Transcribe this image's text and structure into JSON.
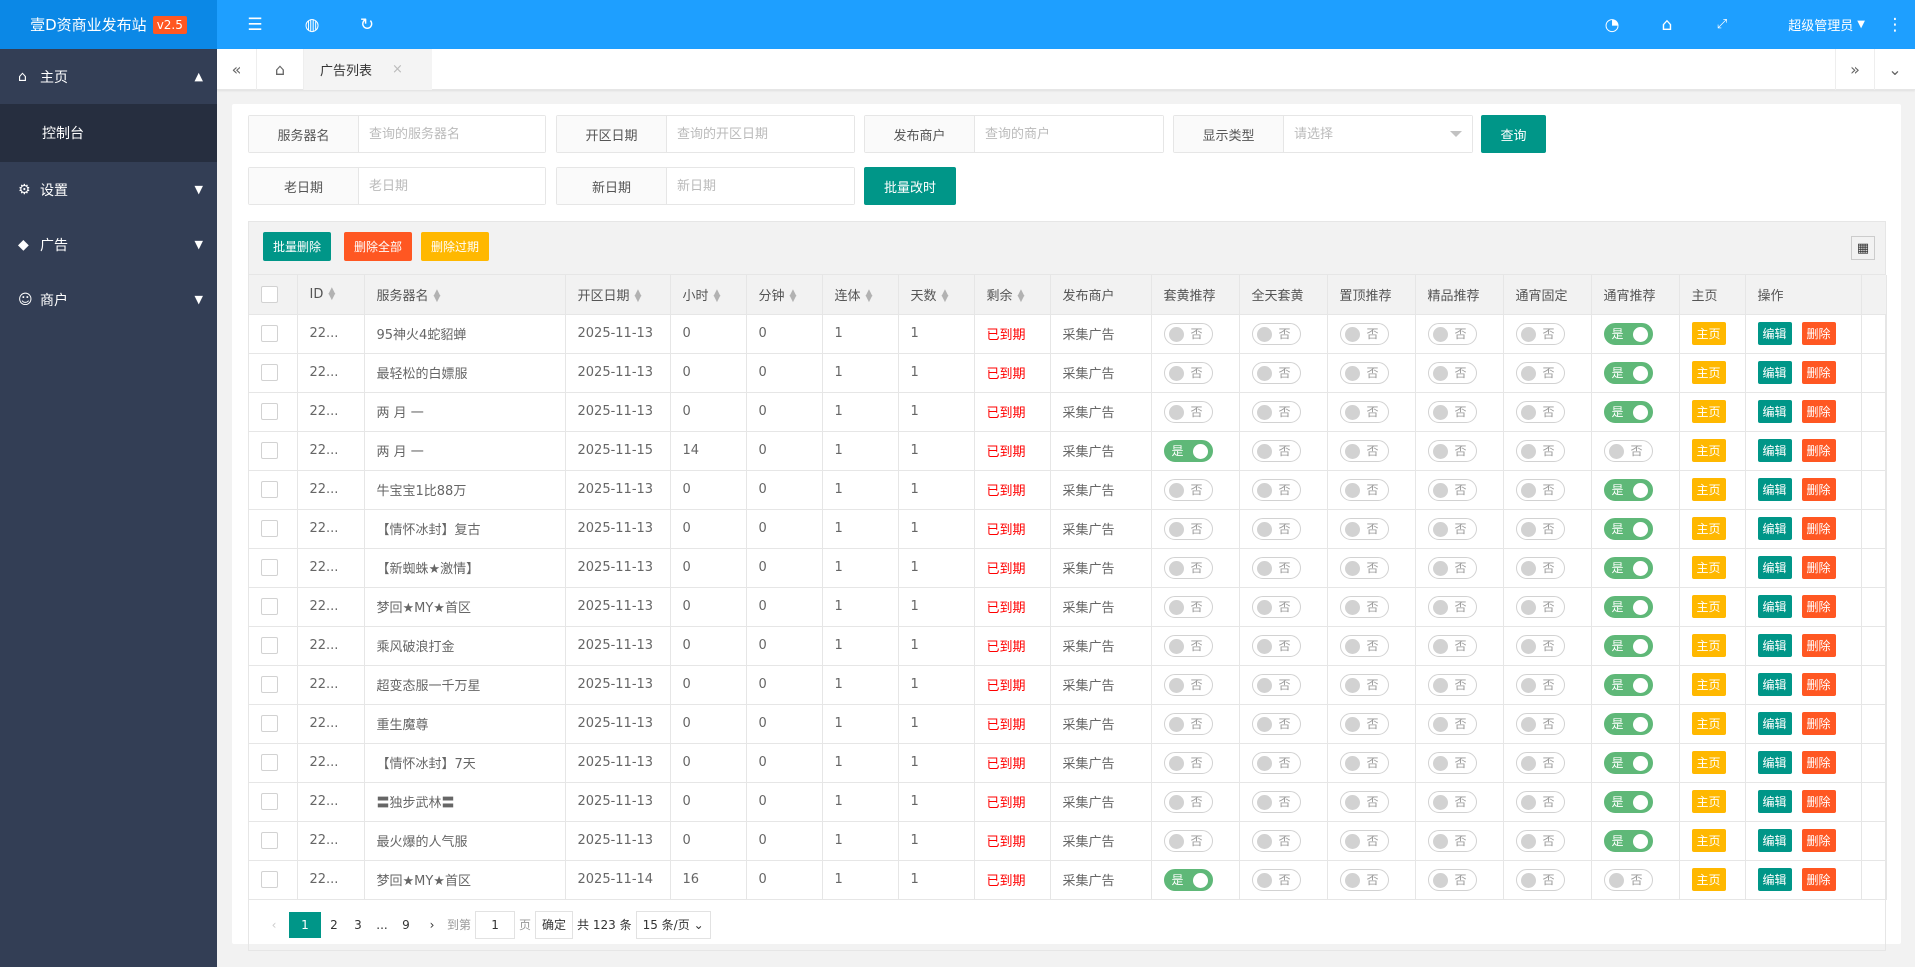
{
  "header": {
    "logo": "壹D资商业发布站",
    "version": "v2.5",
    "admin": "超级管理员",
    "colors": {
      "primary": "#1e9fff",
      "logo_bg": "#0b88e6",
      "version_badge": "#ff5722"
    }
  },
  "sidebar": {
    "items": [
      {
        "label": "主页",
        "icon": "home-icon",
        "expanded": true,
        "children": [
          "控制台"
        ]
      },
      {
        "label": "设置",
        "icon": "gear-icon"
      },
      {
        "label": "广告",
        "icon": "diamond-icon"
      },
      {
        "label": "商户",
        "icon": "user-icon"
      }
    ]
  },
  "tabs": {
    "active": "广告列表"
  },
  "search": {
    "fields": [
      {
        "label": "服务器名",
        "placeholder": "查询的服务器名"
      },
      {
        "label": "开区日期",
        "placeholder": "查询的开区日期"
      },
      {
        "label": "发布商户",
        "placeholder": "查询的商户"
      },
      {
        "label": "显示类型",
        "placeholder": "请选择"
      },
      {
        "label": "老日期",
        "placeholder": "老日期"
      },
      {
        "label": "新日期",
        "placeholder": "新日期"
      }
    ],
    "query_label": "查询",
    "batch_time_label": "批量改时"
  },
  "toolbar": {
    "batch_delete": "批量删除",
    "delete_all": "删除全部",
    "delete_expired": "删除过期"
  },
  "table": {
    "columns": [
      "ID",
      "服务器名",
      "开区日期",
      "小时",
      "分钟",
      "连体",
      "天数",
      "剩余",
      "发布商户",
      "套黄推荐",
      "全天套黄",
      "置顶推荐",
      "精品推荐",
      "通宵固定",
      "通宵推荐",
      "主页",
      "操作"
    ],
    "switch_on": "是",
    "switch_off": "否",
    "home_label": "主页",
    "edit_label": "编辑",
    "delete_label": "删除",
    "rows": [
      {
        "id": "22...",
        "name": "95神火4蛇貂蝉",
        "date": "2025-11-13",
        "hour": "0",
        "minute": "0",
        "lianti": "1",
        "days": "1",
        "remain": "已到期",
        "merchant": "采集广告",
        "switches": [
          false,
          false,
          false,
          false,
          false,
          true
        ]
      },
      {
        "id": "22...",
        "name": "最轻松的白嫖服",
        "date": "2025-11-13",
        "hour": "0",
        "minute": "0",
        "lianti": "1",
        "days": "1",
        "remain": "已到期",
        "merchant": "采集广告",
        "switches": [
          false,
          false,
          false,
          false,
          false,
          true
        ]
      },
      {
        "id": "22...",
        "name": "两 月 一",
        "date": "2025-11-13",
        "hour": "0",
        "minute": "0",
        "lianti": "1",
        "days": "1",
        "remain": "已到期",
        "merchant": "采集广告",
        "switches": [
          false,
          false,
          false,
          false,
          false,
          true
        ]
      },
      {
        "id": "22...",
        "name": "两 月 一",
        "date": "2025-11-15",
        "hour": "14",
        "minute": "0",
        "lianti": "1",
        "days": "1",
        "remain": "已到期",
        "merchant": "采集广告",
        "switches": [
          true,
          false,
          false,
          false,
          false,
          false
        ]
      },
      {
        "id": "22...",
        "name": "牛宝宝1比88万",
        "date": "2025-11-13",
        "hour": "0",
        "minute": "0",
        "lianti": "1",
        "days": "1",
        "remain": "已到期",
        "merchant": "采集广告",
        "switches": [
          false,
          false,
          false,
          false,
          false,
          true
        ]
      },
      {
        "id": "22...",
        "name": "【情怀冰封】复古",
        "date": "2025-11-13",
        "hour": "0",
        "minute": "0",
        "lianti": "1",
        "days": "1",
        "remain": "已到期",
        "merchant": "采集广告",
        "switches": [
          false,
          false,
          false,
          false,
          false,
          true
        ]
      },
      {
        "id": "22...",
        "name": "【新蜘蛛★激情】",
        "date": "2025-11-13",
        "hour": "0",
        "minute": "0",
        "lianti": "1",
        "days": "1",
        "remain": "已到期",
        "merchant": "采集广告",
        "switches": [
          false,
          false,
          false,
          false,
          false,
          true
        ]
      },
      {
        "id": "22...",
        "name": "梦回★MY★首区",
        "date": "2025-11-13",
        "hour": "0",
        "minute": "0",
        "lianti": "1",
        "days": "1",
        "remain": "已到期",
        "merchant": "采集广告",
        "switches": [
          false,
          false,
          false,
          false,
          false,
          true
        ]
      },
      {
        "id": "22...",
        "name": "乘风破浪打金",
        "date": "2025-11-13",
        "hour": "0",
        "minute": "0",
        "lianti": "1",
        "days": "1",
        "remain": "已到期",
        "merchant": "采集广告",
        "switches": [
          false,
          false,
          false,
          false,
          false,
          true
        ]
      },
      {
        "id": "22...",
        "name": "超变态服一千万星",
        "date": "2025-11-13",
        "hour": "0",
        "minute": "0",
        "lianti": "1",
        "days": "1",
        "remain": "已到期",
        "merchant": "采集广告",
        "switches": [
          false,
          false,
          false,
          false,
          false,
          true
        ]
      },
      {
        "id": "22...",
        "name": "重生魔尊",
        "date": "2025-11-13",
        "hour": "0",
        "minute": "0",
        "lianti": "1",
        "days": "1",
        "remain": "已到期",
        "merchant": "采集广告",
        "switches": [
          false,
          false,
          false,
          false,
          false,
          true
        ]
      },
      {
        "id": "22...",
        "name": "【情怀冰封】7天",
        "date": "2025-11-13",
        "hour": "0",
        "minute": "0",
        "lianti": "1",
        "days": "1",
        "remain": "已到期",
        "merchant": "采集广告",
        "switches": [
          false,
          false,
          false,
          false,
          false,
          true
        ]
      },
      {
        "id": "22...",
        "name": "〓独步武林〓",
        "date": "2025-11-13",
        "hour": "0",
        "minute": "0",
        "lianti": "1",
        "days": "1",
        "remain": "已到期",
        "merchant": "采集广告",
        "switches": [
          false,
          false,
          false,
          false,
          false,
          true
        ]
      },
      {
        "id": "22...",
        "name": "最火爆的人气服",
        "date": "2025-11-13",
        "hour": "0",
        "minute": "0",
        "lianti": "1",
        "days": "1",
        "remain": "已到期",
        "merchant": "采集广告",
        "switches": [
          false,
          false,
          false,
          false,
          false,
          true
        ]
      },
      {
        "id": "22...",
        "name": "梦回★MY★首区",
        "date": "2025-11-14",
        "hour": "16",
        "minute": "0",
        "lianti": "1",
        "days": "1",
        "remain": "已到期",
        "merchant": "采集广告",
        "switches": [
          true,
          false,
          false,
          false,
          false,
          false
        ]
      }
    ]
  },
  "pagination": {
    "pages": [
      "1",
      "2",
      "3",
      "...",
      "9"
    ],
    "current": "1",
    "goto_label": "到第",
    "goto_value": "1",
    "page_suffix": "页",
    "confirm": "确定",
    "total": "共 123 条",
    "page_size": "15 条/页"
  }
}
